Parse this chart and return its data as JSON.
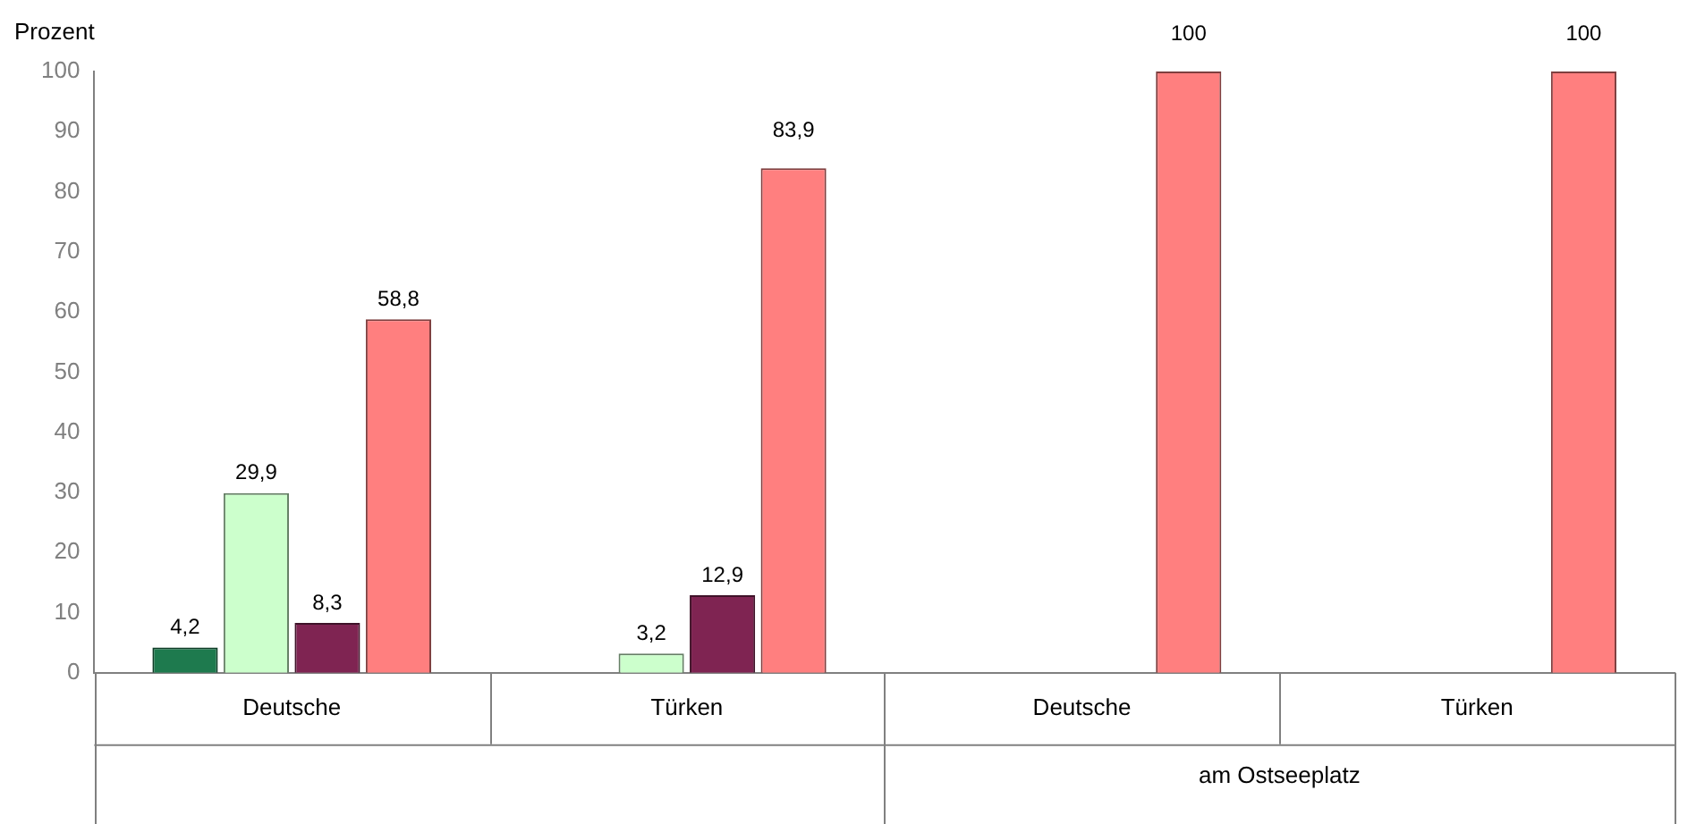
{
  "chart_data": {
    "type": "bar",
    "ylabel": "Prozent",
    "categories": [
      "Deutsche",
      "Türken",
      "Deutsche",
      "Türken"
    ],
    "series": [
      {
        "color": "#1e7a4e",
        "values": [
          4.2,
          null,
          null,
          null
        ],
        "value_labels": [
          "4,2",
          null,
          null,
          null
        ]
      },
      {
        "color": "#ccffcc",
        "values": [
          29.9,
          3.2,
          null,
          null
        ],
        "value_labels": [
          "29,9",
          "3,2",
          null,
          null
        ]
      },
      {
        "color": "#7f2452",
        "values": [
          8.3,
          12.9,
          null,
          null
        ],
        "value_labels": [
          "8,3",
          "12,9",
          null,
          null
        ]
      },
      {
        "color": "#ff7f7f",
        "values": [
          58.8,
          83.9,
          100,
          100
        ],
        "value_labels": [
          "58,8",
          "83,9",
          "100",
          "100"
        ]
      }
    ],
    "ylim": [
      0,
      100
    ],
    "yticks": [
      0,
      10,
      20,
      30,
      40,
      50,
      60,
      70,
      80,
      90,
      100
    ],
    "grid": false,
    "legend": false,
    "annotations": [
      "am Ostseeplatz"
    ]
  }
}
